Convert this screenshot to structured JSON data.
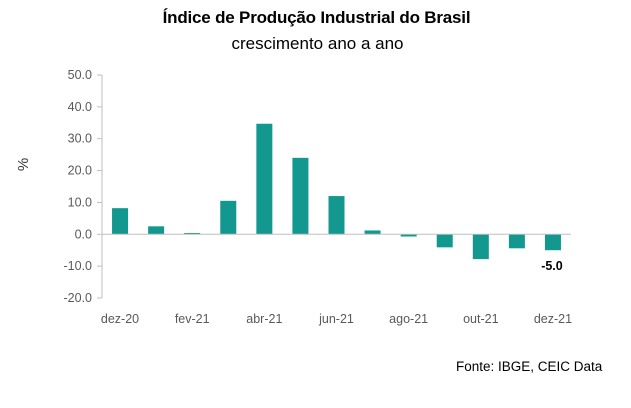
{
  "chart_data": {
    "type": "bar",
    "title": "Índice de Produção Industrial do Brasil",
    "subtitle": "crescimento ano a ano",
    "ylabel": "%",
    "xlabel": "",
    "source": "Fonte: IBGE, CEIC Data",
    "ylim": [
      -20,
      50
    ],
    "yticks": [
      50,
      40,
      30,
      20,
      10,
      0,
      -10,
      -20
    ],
    "ytick_labels": [
      "50.0",
      "40.0",
      "30.0",
      "20.0",
      "10.0",
      "0.0",
      "-10.0",
      "-20.0"
    ],
    "categories": [
      "dez-20",
      "jan-21",
      "fev-21",
      "mar-21",
      "abr-21",
      "mai-21",
      "jun-21",
      "jul-21",
      "ago-21",
      "set-21",
      "out-21",
      "nov-21",
      "dez-21"
    ],
    "xtick_labels": [
      "dez-20",
      "",
      "fev-21",
      "",
      "abr-21",
      "",
      "jun-21",
      "",
      "ago-21",
      "",
      "out-21",
      "",
      "dez-21"
    ],
    "values": [
      8.2,
      2.5,
      0.4,
      10.5,
      34.7,
      24.0,
      12.0,
      1.2,
      -0.7,
      -4.1,
      -7.8,
      -4.4,
      -5.0
    ],
    "annotations": [
      {
        "category": "dez-21",
        "text": "-5.0"
      }
    ],
    "grid": false,
    "legend": "none",
    "colors": {
      "bar": "#13988f",
      "axis": "#bfbfbf",
      "text": "#595959"
    }
  }
}
